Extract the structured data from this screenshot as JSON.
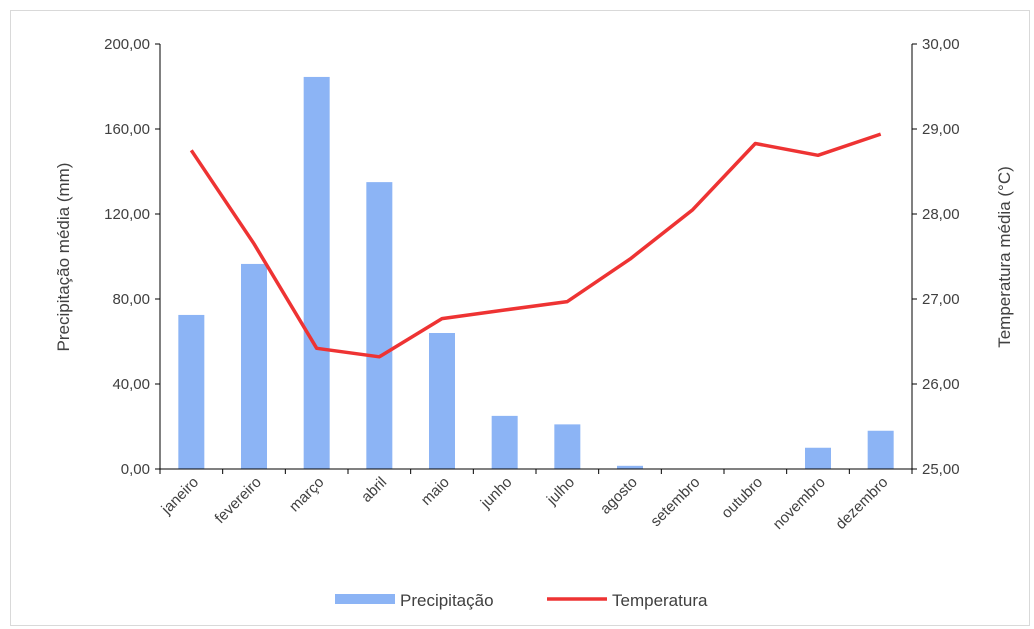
{
  "chart_data": {
    "type": "bar+line",
    "title": "",
    "categories": [
      "janeiro",
      "fevereiro",
      "março",
      "abril",
      "maio",
      "junho",
      "julho",
      "agosto",
      "setembro",
      "outubro",
      "novembro",
      "dezembro"
    ],
    "series": [
      {
        "name": "Precipitação",
        "type": "bar",
        "axis": "left",
        "color": "#8cb4f5",
        "values": [
          72.5,
          96.5,
          184.5,
          135.0,
          64.0,
          25.0,
          21.0,
          1.5,
          0.0,
          0.0,
          10.0,
          18.0
        ]
      },
      {
        "name": "Temperatura",
        "type": "line",
        "axis": "right",
        "color": "#ee3333",
        "values": [
          28.75,
          27.65,
          26.42,
          26.32,
          26.77,
          26.87,
          26.97,
          27.47,
          28.05,
          28.83,
          28.69,
          28.94
        ]
      }
    ],
    "ylabel_left": "Precipitação média (mm)",
    "ylabel_right": "Temperatura média (°C)",
    "ylim_left": [
      0,
      200
    ],
    "yticks_left": [
      "0,00",
      "40,00",
      "80,00",
      "120,00",
      "160,00",
      "200,00"
    ],
    "ylim_right": [
      25,
      30
    ],
    "yticks_right": [
      "25,00",
      "26,00",
      "27,00",
      "28,00",
      "29,00",
      "30,00"
    ],
    "grid": false,
    "legend_position": "bottom"
  }
}
